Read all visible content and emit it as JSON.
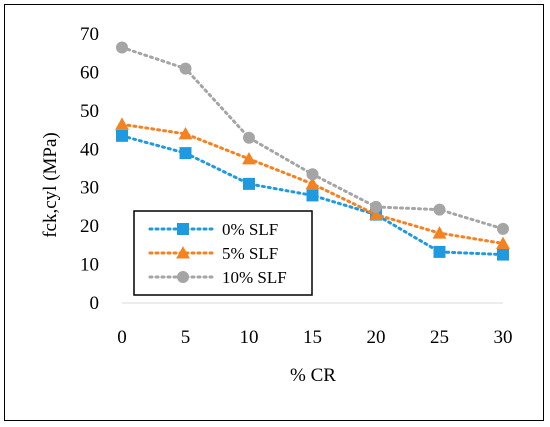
{
  "chart_data": {
    "type": "line",
    "title": "",
    "xlabel": "% CR",
    "ylabel": "fck,cyl (MPa)",
    "x": [
      0,
      5,
      10,
      15,
      20,
      25,
      30
    ],
    "xticks": [
      "0",
      "5",
      "10",
      "15",
      "20",
      "25",
      "30"
    ],
    "yticks": [
      "0",
      "10",
      "20",
      "30",
      "40",
      "50",
      "60",
      "70"
    ],
    "xlim": [
      0,
      30
    ],
    "ylim": [
      0,
      70
    ],
    "grid": "none",
    "legend_position": "bottom-left",
    "series": [
      {
        "name": "0% SLF",
        "color": "#1f9ae0",
        "marker": "square",
        "style": "dotted",
        "values": [
          43.5,
          39,
          31,
          28,
          23,
          13.3,
          12.6
        ]
      },
      {
        "name": "5% SLF",
        "color": "#f58220",
        "marker": "triangle",
        "style": "dotted",
        "values": [
          46.5,
          44,
          37.5,
          31,
          23,
          18.2,
          15.5
        ]
      },
      {
        "name": "10% SLF",
        "color": "#a5a5a5",
        "marker": "circle",
        "style": "dotted",
        "values": [
          66.5,
          61,
          43,
          33.5,
          25,
          24.3,
          19.3
        ]
      }
    ]
  }
}
